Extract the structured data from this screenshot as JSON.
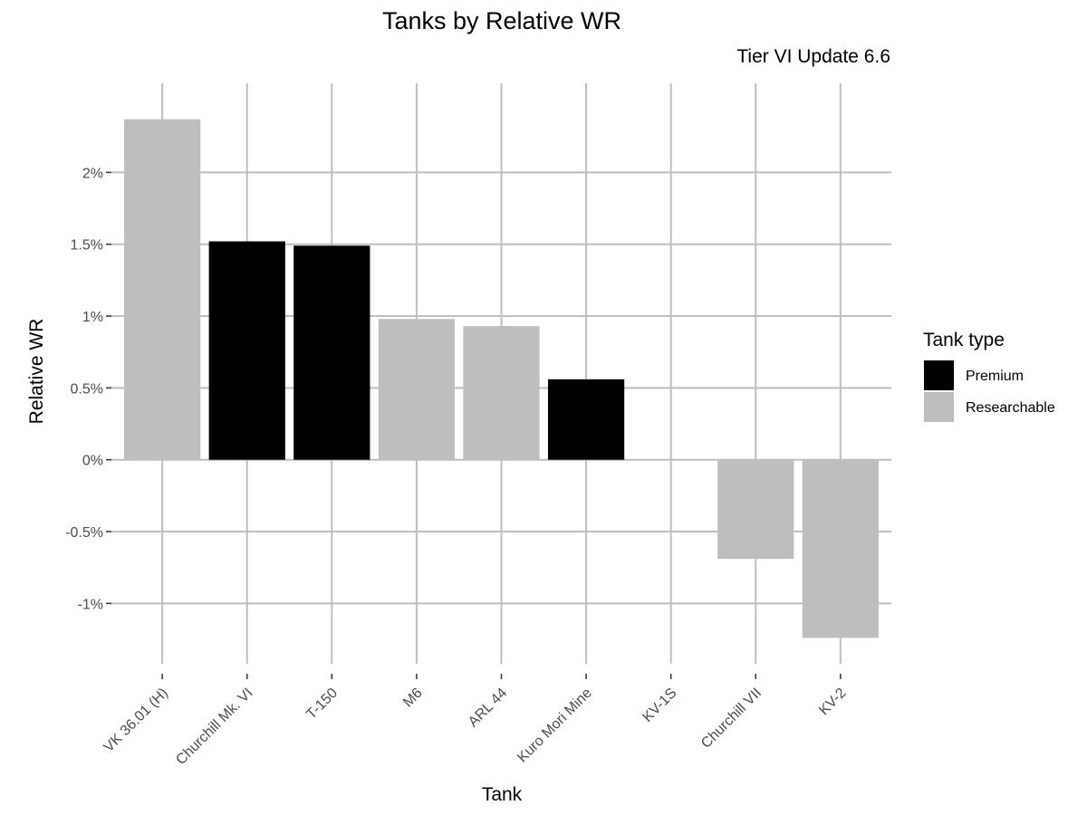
{
  "chart_data": {
    "type": "bar",
    "title": "Tanks by Relative WR",
    "subtitle": "Tier VI Update 6.6",
    "xlabel": "Tank",
    "ylabel": "Relative WR",
    "categories": [
      "VK 36.01 (H)",
      "Churchill Mk. VI",
      "T-150",
      "M6",
      "ARL 44",
      "Kuro Mori Mine",
      "KV-1S",
      "Churchill VII",
      "KV-2"
    ],
    "values": [
      2.37,
      1.52,
      1.49,
      0.98,
      0.93,
      0.56,
      0.0,
      -0.69,
      -1.24
    ],
    "types": [
      "Researchable",
      "Premium",
      "Premium",
      "Researchable",
      "Researchable",
      "Premium",
      "Researchable",
      "Researchable",
      "Researchable"
    ],
    "ylim": [
      -1.42,
      2.62
    ],
    "yticks": [
      -1,
      -0.5,
      0,
      0.5,
      1,
      1.5,
      2
    ],
    "ytick_labels": [
      "-1%",
      "-0.5%",
      "0%",
      "0.5%",
      "1%",
      "1.5%",
      "2%"
    ],
    "grid": true,
    "legend": {
      "title": "Tank type",
      "placement": "right",
      "entries": [
        {
          "label": "Premium",
          "color": "#000000"
        },
        {
          "label": "Researchable",
          "color": "#bebebe"
        }
      ]
    },
    "colors": {
      "Premium": "#000000",
      "Researchable": "#bebebe",
      "grid": "#bebebe"
    }
  }
}
